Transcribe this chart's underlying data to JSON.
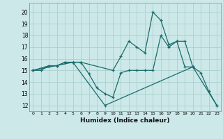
{
  "xlabel": "Humidex (Indice chaleur)",
  "bg_color": "#cce8e8",
  "grid_color": "#aacfcf",
  "line_color": "#1a6b6b",
  "xlim": [
    -0.5,
    23.5
  ],
  "ylim": [
    11.5,
    20.8
  ],
  "xticks": [
    0,
    1,
    2,
    3,
    4,
    5,
    6,
    7,
    8,
    9,
    10,
    11,
    12,
    13,
    14,
    15,
    16,
    17,
    18,
    19,
    20,
    21,
    22,
    23
  ],
  "yticks": [
    12,
    13,
    14,
    15,
    16,
    17,
    18,
    19,
    20
  ],
  "line1_x": [
    0,
    1,
    2,
    3,
    4,
    5,
    6,
    10,
    11,
    12,
    13,
    14,
    15,
    16,
    17,
    18,
    19,
    20,
    21,
    22,
    23
  ],
  "line1_y": [
    15,
    15,
    15.4,
    15.4,
    15.7,
    15.7,
    15.7,
    15.0,
    16.2,
    17.5,
    17.0,
    16.5,
    20.0,
    19.3,
    17.2,
    17.5,
    17.5,
    15.3,
    14.8,
    13.2,
    12.0
  ],
  "line2_x": [
    0,
    2,
    3,
    4,
    5,
    6,
    7,
    8,
    9,
    10,
    11,
    12,
    13,
    14,
    15,
    16,
    17,
    18,
    19,
    20
  ],
  "line2_y": [
    15,
    15.4,
    15.4,
    15.7,
    15.7,
    15.7,
    14.7,
    13.5,
    13.0,
    12.7,
    14.8,
    15.0,
    15.0,
    15.0,
    15.0,
    18.0,
    17.0,
    17.5,
    15.3,
    15.3
  ],
  "line3_x": [
    0,
    5,
    9,
    20,
    23
  ],
  "line3_y": [
    15,
    15.7,
    12.0,
    15.3,
    12.0
  ]
}
